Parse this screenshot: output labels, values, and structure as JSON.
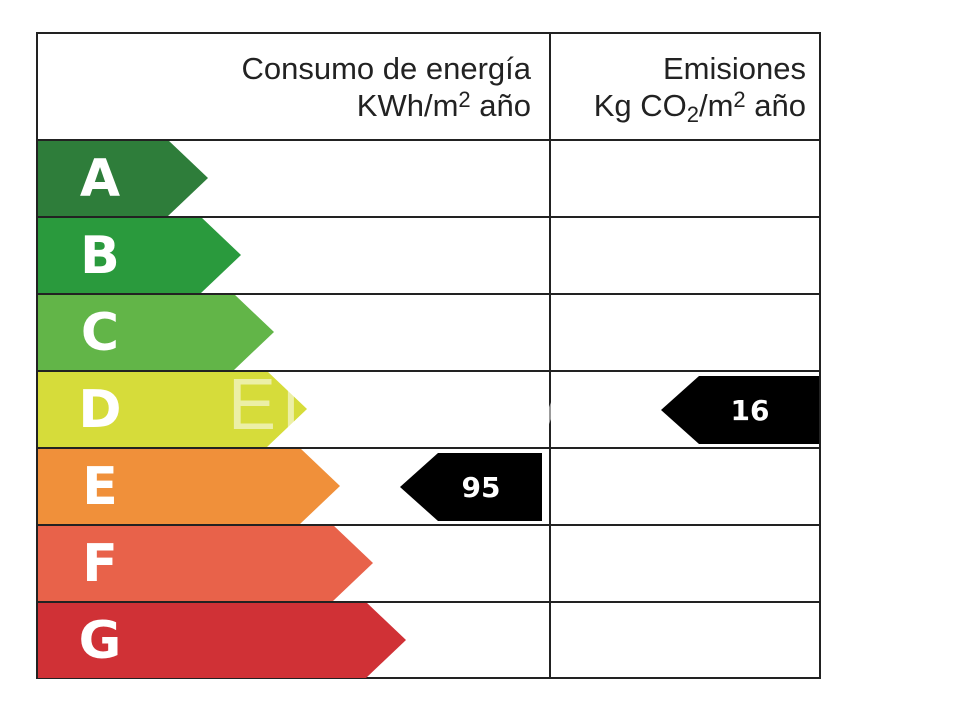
{
  "header": {
    "energy_title": "Consumo de energía",
    "energy_unit_prefix": "KWh/m",
    "energy_unit_sup": "2",
    "energy_unit_suffix": " año",
    "emissions_title": "Emisiones",
    "emissions_unit_a": "Kg CO",
    "emissions_unit_sub": "2",
    "emissions_unit_b": "/m",
    "emissions_unit_sup": "2",
    "emissions_unit_suffix": " año"
  },
  "ratings": [
    {
      "letter": "A",
      "color": "#2e7d3a"
    },
    {
      "letter": "B",
      "color": "#2a9a3d"
    },
    {
      "letter": "C",
      "color": "#62b548"
    },
    {
      "letter": "D",
      "color": "#d6dc3a"
    },
    {
      "letter": "E",
      "color": "#f0903a"
    },
    {
      "letter": "F",
      "color": "#e8624a"
    },
    {
      "letter": "G",
      "color": "#d03136"
    }
  ],
  "energy_rating": {
    "row": "E",
    "value": "95"
  },
  "emissions_rating": {
    "row": "D",
    "value": "16"
  },
  "watermark": "ENERGIAS"
}
